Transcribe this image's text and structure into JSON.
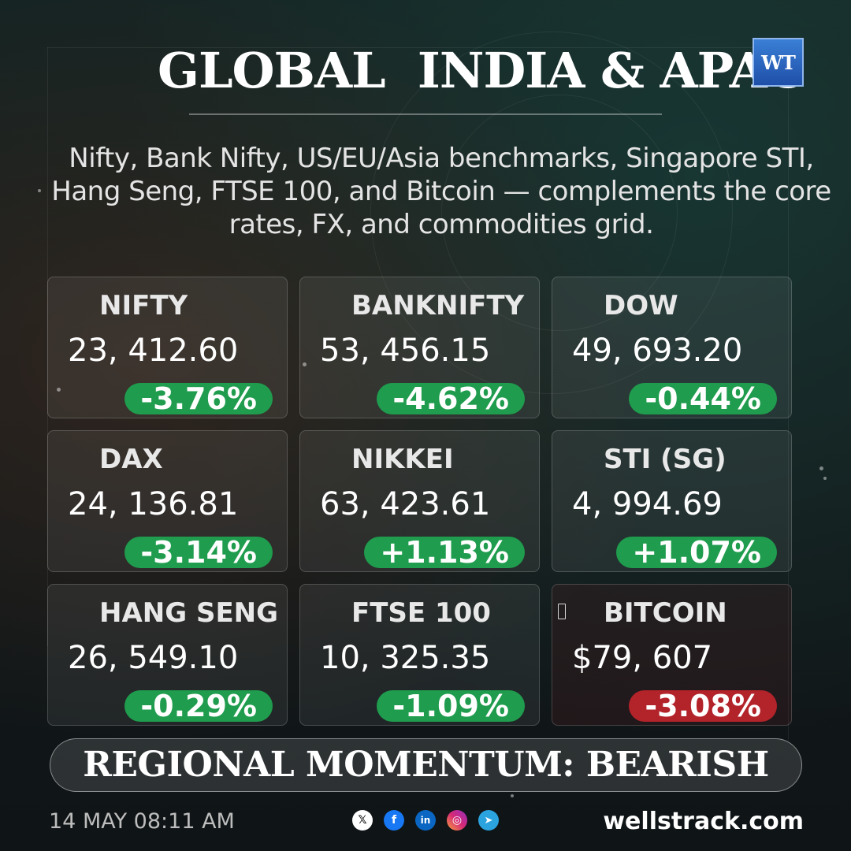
{
  "header": {
    "title": "GLOBAL  INDIA & APAC",
    "logo_text": "WT",
    "subtitle": "Nifty, Bank Nifty, US/EU/Asia benchmarks, Singapore STI, Hang Seng, FTSE 100, and Bitcoin — complements the core rates, FX, and commodities grid."
  },
  "cards": [
    {
      "label": "NIFTY",
      "value": "23, 412.60",
      "change": "-3.76%",
      "change_color": "#1f9c4d"
    },
    {
      "label": "BANKNIFTY",
      "value": "53, 456.15",
      "change": "-4.62%",
      "change_color": "#1f9c4d"
    },
    {
      "label": "DOW",
      "value": "49, 693.20",
      "change": "-0.44%",
      "change_color": "#1f9c4d"
    },
    {
      "label": "DAX",
      "value": "24, 136.81",
      "change": "-3.14%",
      "change_color": "#1f9c4d"
    },
    {
      "label": "NIKKEI",
      "value": "63, 423.61",
      "change": "+1.13%",
      "change_color": "#1f9c4d"
    },
    {
      "label": "STI (SG)",
      "value": "4, 994.69",
      "change": "+1.07%",
      "change_color": "#1f9c4d"
    },
    {
      "label": "HANG SENG",
      "value": "26, 549.10",
      "change": "-0.29%",
      "change_color": "#1f9c4d"
    },
    {
      "label": "FTSE 100",
      "value": "10, 325.35",
      "change": "-1.09%",
      "change_color": "#1f9c4d"
    },
    {
      "label": "BITCOIN",
      "value": "$79, 607",
      "change": "-3.08%",
      "change_color": "#b3232a"
    }
  ],
  "banner": {
    "text": "REGIONAL MOMENTUM: BEARISH"
  },
  "footer": {
    "date": "14 MAY 08:11 AM",
    "social_icons": [
      "x-icon",
      "facebook-icon",
      "linkedin-icon",
      "instagram-icon",
      "telegram-icon"
    ],
    "website": "wellstrack.com"
  }
}
